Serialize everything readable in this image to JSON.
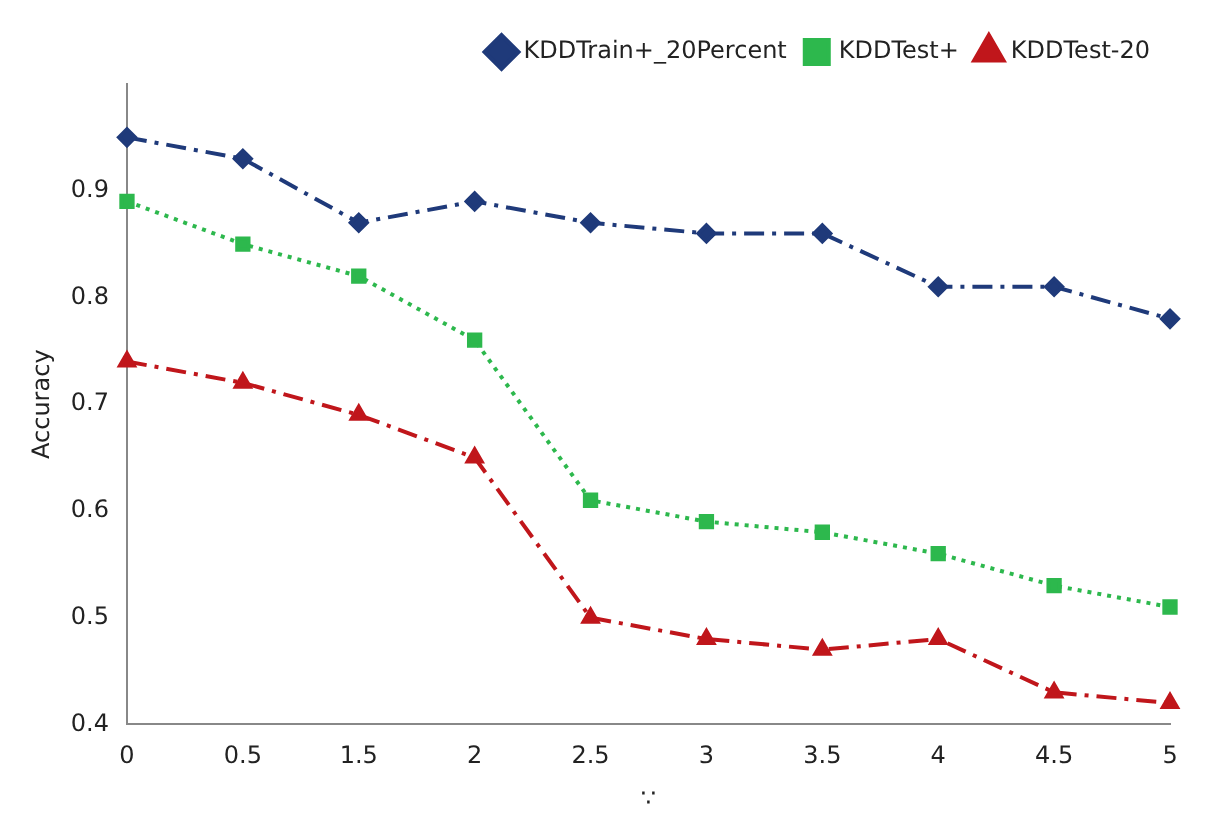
{
  "chart_data": {
    "type": "line",
    "xlabel": "∵",
    "ylabel": "Accuracy",
    "categories": [
      "0",
      "0.5",
      "1.5",
      "2",
      "2.5",
      "3",
      "3.5",
      "4",
      "4.5",
      "5"
    ],
    "series": [
      {
        "name": "KDDTrain+_20Percent",
        "color": "#1f3a7a",
        "marker": "diamond",
        "line_style": "dashed",
        "values": [
          0.95,
          0.93,
          0.87,
          0.89,
          0.87,
          0.86,
          0.86,
          0.81,
          0.81,
          0.78
        ]
      },
      {
        "name": "KDDTest+",
        "color": "#2db84d",
        "marker": "square",
        "line_style": "dotted",
        "values": [
          0.89,
          0.85,
          0.82,
          0.76,
          0.61,
          0.59,
          0.58,
          0.56,
          0.53,
          0.51
        ]
      },
      {
        "name": "KDDTest-20",
        "color": "#c0161b",
        "marker": "triangle",
        "line_style": "dashed",
        "values": [
          0.74,
          0.72,
          0.69,
          0.65,
          0.5,
          0.48,
          0.47,
          0.48,
          0.43,
          0.42
        ]
      }
    ],
    "ylim": [
      0.4,
      1.0
    ],
    "yticks": [
      0.4,
      0.5,
      0.6,
      0.7,
      0.8,
      0.9
    ],
    "grid": false,
    "legend": "top right"
  }
}
